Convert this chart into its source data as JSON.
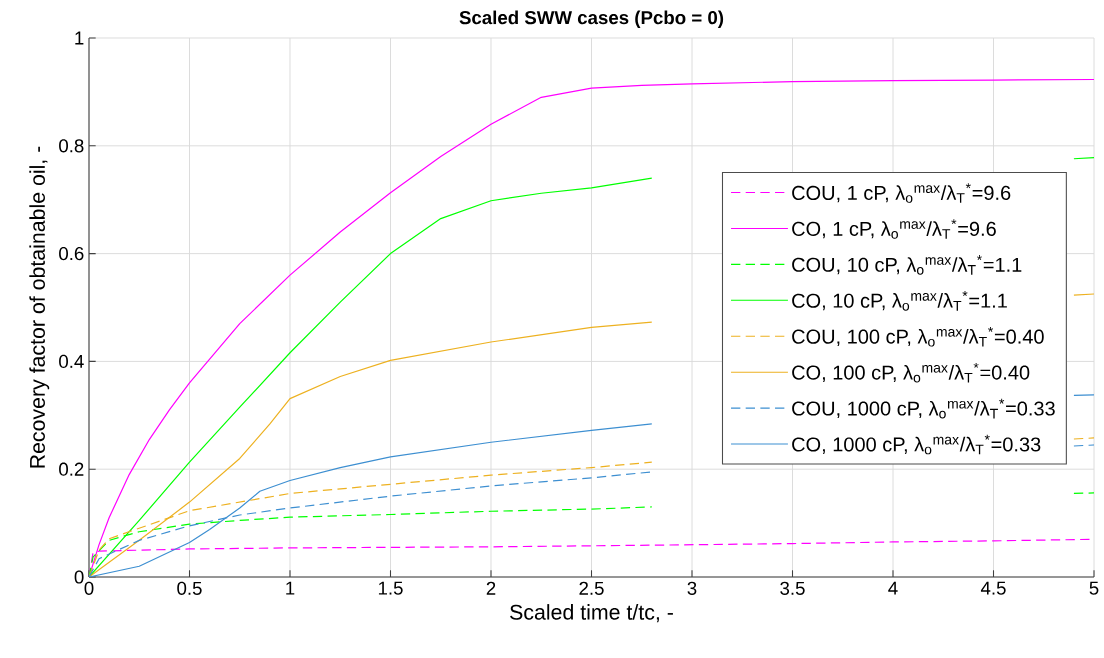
{
  "chart_data": {
    "type": "line",
    "title": "Scaled SWW cases (Pcbo = 0)",
    "xlabel": "Scaled time t/tc, -",
    "ylabel": "Recovery factor of obtainable oil, -",
    "xlim": [
      0,
      5
    ],
    "ylim": [
      0,
      1
    ],
    "xticks": [
      0,
      0.5,
      1,
      1.5,
      2,
      2.5,
      3,
      3.5,
      4,
      4.5,
      5
    ],
    "yticks": [
      0,
      0.2,
      0.4,
      0.6,
      0.8,
      1
    ],
    "grid": true,
    "legend": "right",
    "series": [
      {
        "name": "COU,   1 cP,   λ$_{o}$$^{max}$/λ$_{T}$$^{*}$=9.6",
        "color": "#ff00ff",
        "line_style": "dashed",
        "x": [
          0,
          0.02,
          0.05,
          0.5,
          1,
          2,
          2.8,
          3.5,
          4,
          4.5,
          5
        ],
        "values": [
          0,
          0.045,
          0.048,
          0.052,
          0.054,
          0.056,
          0.059,
          0.062,
          0.065,
          0.067,
          0.07
        ]
      },
      {
        "name": "CO,   1 cP,   λ$_{o}$$^{max}$/λ$_{T}$$^{*}$=9.6",
        "color": "#ff00ff",
        "line_style": "solid",
        "x": [
          0,
          0.05,
          0.1,
          0.2,
          0.3,
          0.4,
          0.5,
          0.75,
          1,
          1.25,
          1.5,
          1.75,
          2,
          2.25,
          2.5,
          2.75,
          3,
          3.5,
          4,
          4.5,
          5
        ],
        "values": [
          0,
          0.06,
          0.11,
          0.19,
          0.255,
          0.31,
          0.36,
          0.47,
          0.56,
          0.64,
          0.713,
          0.78,
          0.84,
          0.89,
          0.907,
          0.912,
          0.915,
          0.919,
          0.921,
          0.922,
          0.923
        ]
      },
      {
        "name": "COU,   10 cP,   λ$_{o}$$^{max}$/λ$_{T}$$^{*}$=1.1",
        "color": "#00ff00",
        "line_style": "dashed",
        "x": [
          0,
          0.02,
          0.1,
          0.25,
          0.5,
          0.75,
          1,
          1.5,
          2,
          2.5,
          2.8,
          3.5,
          4.9,
          5
        ],
        "values": [
          0,
          0.037,
          0.068,
          0.084,
          0.098,
          0.105,
          0.111,
          0.116,
          0.122,
          0.126,
          0.13,
          null,
          0.155,
          0.156
        ]
      },
      {
        "name": "CO,   10 cP,   λ$_{o}$$^{max}$/λ$_{T}$$^{*}$=1.1",
        "color": "#00ff00",
        "line_style": "solid",
        "x": [
          0,
          0.25,
          0.5,
          0.75,
          1,
          1.25,
          1.5,
          1.75,
          2,
          2.25,
          2.5,
          2.8,
          3.5,
          4.9,
          5
        ],
        "values": [
          0,
          0.105,
          0.213,
          0.315,
          0.416,
          0.51,
          0.6,
          0.665,
          0.698,
          0.712,
          0.722,
          0.74,
          null,
          0.776,
          0.778
        ]
      },
      {
        "name": "COU, 100 cP,   λ$_{o}$$^{max}$/λ$_{T}$$^{*}$=0.40",
        "color": "#edb120",
        "line_style": "dashed",
        "x": [
          0,
          0.05,
          0.1,
          0.5,
          1,
          1.5,
          2,
          2.5,
          2.8,
          3.5,
          4.9,
          5
        ],
        "values": [
          0,
          0.05,
          0.071,
          0.123,
          0.155,
          0.172,
          0.189,
          0.203,
          0.213,
          null,
          0.256,
          0.258
        ]
      },
      {
        "name": "CO,   100 cP,   λ$_{o}$$^{max}$/λ$_{T}$$^{*}$=0.40",
        "color": "#edb120",
        "line_style": "solid",
        "x": [
          0,
          0.25,
          0.5,
          0.75,
          0.9,
          1,
          1.25,
          1.5,
          2,
          2.5,
          2.8,
          3.5,
          4.9,
          5
        ],
        "values": [
          0,
          0.068,
          0.139,
          0.22,
          0.284,
          0.331,
          0.372,
          0.402,
          0.436,
          0.463,
          0.473,
          null,
          0.523,
          0.525
        ]
      },
      {
        "name": "COU, 1000 cP,   λ$_{o}$$^{max}$/λ$_{T}$$^{*}$=0.33",
        "color": "#3d8fd1",
        "line_style": "dashed",
        "x": [
          0,
          0.05,
          0.25,
          0.5,
          0.75,
          1,
          1.5,
          2,
          2.5,
          2.8,
          3.5,
          4.9,
          5
        ],
        "values": [
          0,
          0.034,
          0.068,
          0.095,
          0.115,
          0.128,
          0.15,
          0.169,
          0.184,
          0.195,
          null,
          0.243,
          0.245
        ]
      },
      {
        "name": "CO,   1000 cP,   λ$_{o}$$^{max}$/λ$_{T}$$^{*}$=0.33",
        "color": "#3d8fd1",
        "line_style": "solid",
        "x": [
          0,
          0.25,
          0.5,
          0.6,
          0.75,
          0.85,
          1,
          1.25,
          1.5,
          2,
          2.5,
          2.8,
          3.5,
          4.9,
          5
        ],
        "values": [
          0,
          0.02,
          0.064,
          0.088,
          0.128,
          0.159,
          0.179,
          0.203,
          0.223,
          0.25,
          0.272,
          0.284,
          null,
          0.337,
          0.338
        ]
      }
    ]
  }
}
